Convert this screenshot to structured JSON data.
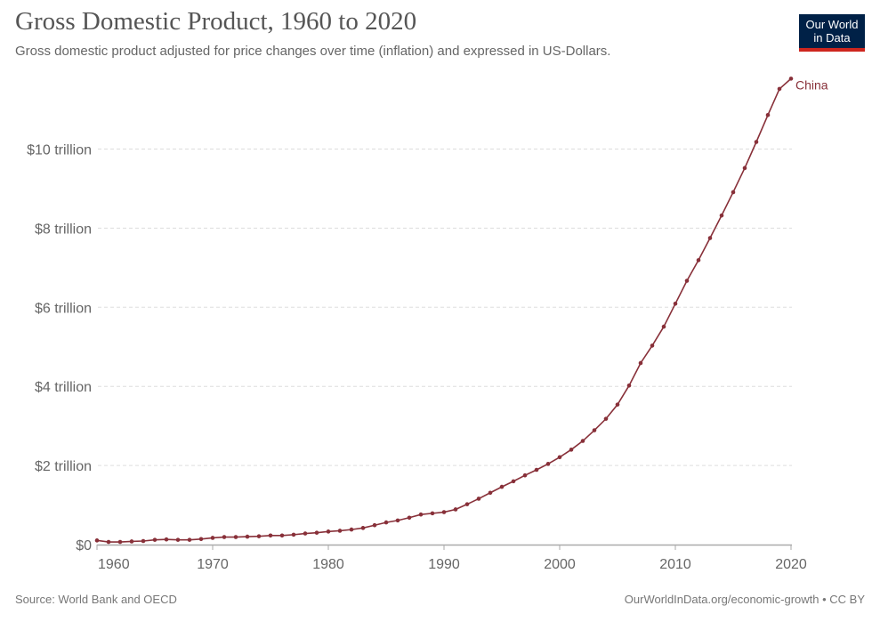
{
  "header": {
    "title": "Gross Domestic Product, 1960 to 2020",
    "subtitle": "Gross domestic product adjusted for price changes over time (inflation) and expressed in US-Dollars.",
    "logo_line1": "Our World",
    "logo_line2": "in Data"
  },
  "footer": {
    "source": "Source: World Bank and OECD",
    "url": "OurWorldInData.org/economic-growth • CC BY"
  },
  "colors": {
    "series": "#883039",
    "grid": "#dddddd",
    "axis": "#aaaaaa",
    "logo_bg": "#002147",
    "logo_bar": "#ce261e"
  },
  "chart_data": {
    "type": "line",
    "title": "Gross Domestic Product, 1960 to 2020",
    "xlim": [
      1960,
      2020
    ],
    "ylim": [
      0,
      11.8
    ],
    "yunit": "trillion US$",
    "x_ticks": [
      1960,
      1970,
      1980,
      1990,
      2000,
      2010,
      2020
    ],
    "x_tick_labels": [
      "1960",
      "1970",
      "1980",
      "1990",
      "2000",
      "2010",
      "2020"
    ],
    "y_ticks": [
      0,
      2,
      4,
      6,
      8,
      10
    ],
    "y_tick_labels": [
      "$0",
      "$2 trillion",
      "$4 trillion",
      "$6 trillion",
      "$8 trillion",
      "$10 trillion"
    ],
    "grid": "horizontal dashed",
    "series": [
      {
        "name": "China",
        "x": [
          1960,
          1961,
          1962,
          1963,
          1964,
          1965,
          1966,
          1967,
          1968,
          1969,
          1970,
          1971,
          1972,
          1973,
          1974,
          1975,
          1976,
          1977,
          1978,
          1979,
          1980,
          1981,
          1982,
          1983,
          1984,
          1985,
          1986,
          1987,
          1988,
          1989,
          1990,
          1991,
          1992,
          1993,
          1994,
          1995,
          1996,
          1997,
          1998,
          1999,
          2000,
          2001,
          2002,
          2003,
          2004,
          2005,
          2006,
          2007,
          2008,
          2009,
          2010,
          2011,
          2012,
          2013,
          2014,
          2015,
          2016,
          2017,
          2018,
          2019,
          2020
        ],
        "values": [
          0.105,
          0.067,
          0.067,
          0.08,
          0.09,
          0.12,
          0.13,
          0.12,
          0.12,
          0.14,
          0.17,
          0.19,
          0.19,
          0.2,
          0.21,
          0.23,
          0.23,
          0.25,
          0.28,
          0.3,
          0.33,
          0.35,
          0.38,
          0.42,
          0.49,
          0.56,
          0.61,
          0.68,
          0.76,
          0.79,
          0.82,
          0.89,
          1.02,
          1.16,
          1.31,
          1.46,
          1.6,
          1.75,
          1.89,
          2.04,
          2.21,
          2.4,
          2.62,
          2.89,
          3.18,
          3.54,
          4.02,
          4.59,
          5.03,
          5.51,
          6.09,
          6.67,
          7.19,
          7.75,
          8.32,
          8.91,
          9.52,
          10.18,
          10.86,
          11.52,
          11.78
        ]
      }
    ]
  }
}
